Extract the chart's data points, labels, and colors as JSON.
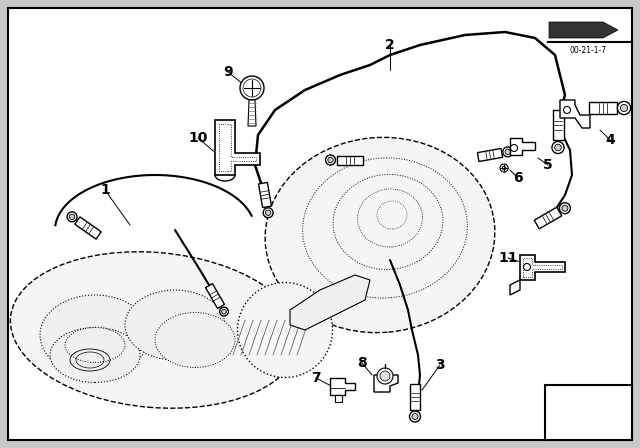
{
  "bg_color": "#c8c8c8",
  "white_bg": "#ffffff",
  "border_color": "#000000",
  "lc": "#000000",
  "label_fontsize": 9,
  "stamp_text": "00-21-1-7",
  "figsize": [
    6.4,
    4.48
  ],
  "dpi": 100
}
